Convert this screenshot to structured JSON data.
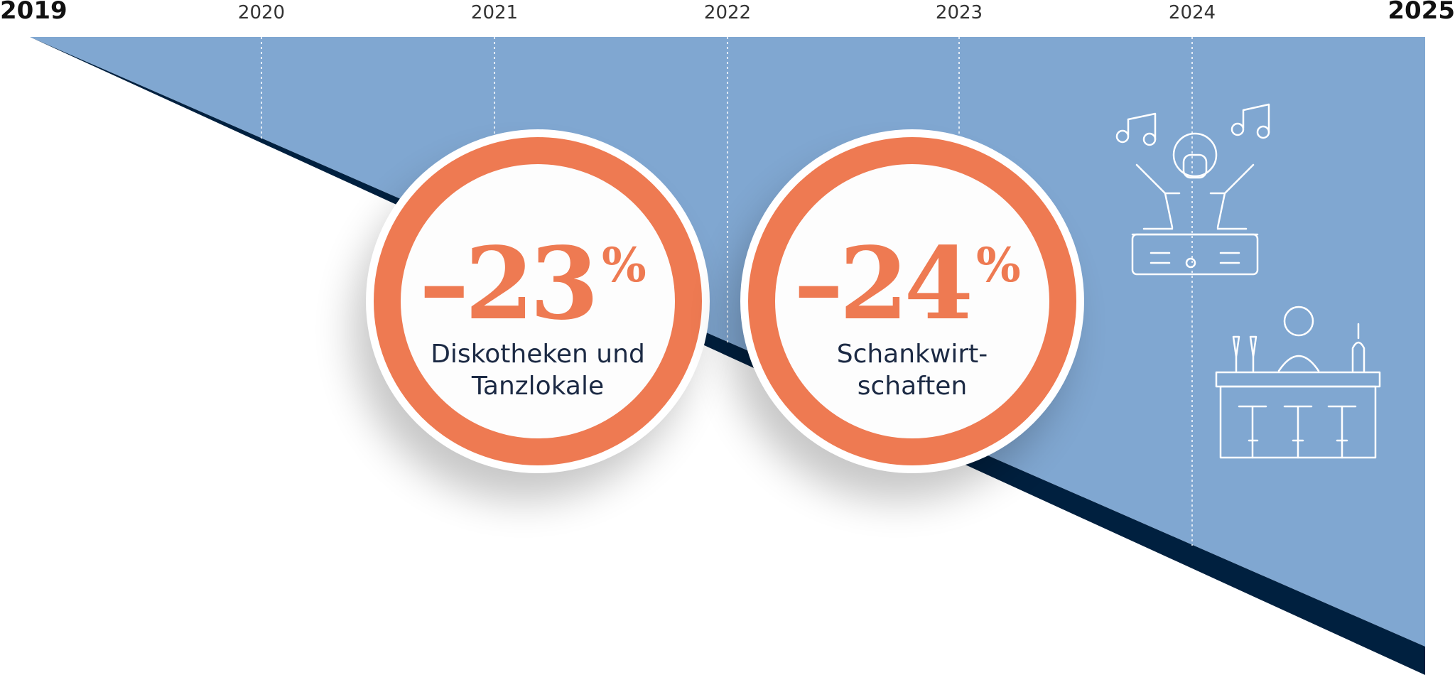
{
  "timeline": {
    "start": "2019",
    "years": [
      "2020",
      "2021",
      "2022",
      "2023",
      "2024"
    ],
    "end": "2025"
  },
  "stats": [
    {
      "value": "–23",
      "unit": "%",
      "label_lines": [
        "Diskotheken und",
        "Tanzlokale"
      ]
    },
    {
      "value": "–24",
      "unit": "%",
      "label_lines": [
        "Schankwirt-",
        "schaften"
      ]
    }
  ]
}
